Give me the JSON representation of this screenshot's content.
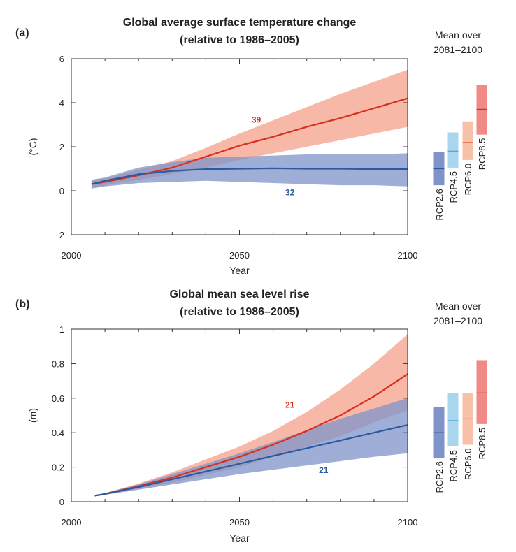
{
  "chart_data": [
    {
      "panel_label": "(a)",
      "type": "area",
      "title_line1": "Global average surface temperature change",
      "title_line2": "(relative to 1986–2005)",
      "xlabel": "Year",
      "ylabel": "(°C)",
      "xlim": [
        2000,
        2100
      ],
      "ylim": [
        -2,
        6
      ],
      "xticks": [
        2000,
        2050,
        2100
      ],
      "xtick_labels": [
        "2000",
        "2050",
        "2100"
      ],
      "yticks": [
        -2,
        0,
        2,
        4,
        6
      ],
      "ytick_labels": [
        "−2",
        "0",
        "2",
        "4",
        "6"
      ],
      "series": [
        {
          "color": "#d7301f",
          "band_color": "#f4a08a",
          "x": [
            2006,
            2010,
            2020,
            2030,
            2040,
            2050,
            2060,
            2070,
            2080,
            2090,
            2100
          ],
          "mean": [
            0.3,
            0.4,
            0.7,
            1.05,
            1.55,
            2.05,
            2.45,
            2.9,
            3.3,
            3.75,
            4.2
          ],
          "lower": [
            0.15,
            0.25,
            0.5,
            0.75,
            1.05,
            1.4,
            1.7,
            2.0,
            2.3,
            2.6,
            2.9
          ],
          "upper": [
            0.5,
            0.55,
            0.95,
            1.35,
            1.95,
            2.6,
            3.2,
            3.8,
            4.4,
            4.95,
            5.5
          ],
          "count_label": "39",
          "count_pos": [
            2055,
            3.1
          ]
        },
        {
          "color": "#2c5aa0",
          "band_color": "#7f93c9",
          "x": [
            2006,
            2010,
            2020,
            2030,
            2040,
            2050,
            2060,
            2070,
            2080,
            2090,
            2100
          ],
          "mean": [
            0.3,
            0.45,
            0.75,
            0.9,
            0.98,
            1.0,
            1.02,
            1.0,
            1.0,
            0.98,
            0.98
          ],
          "lower": [
            0.1,
            0.2,
            0.35,
            0.4,
            0.45,
            0.4,
            0.35,
            0.3,
            0.25,
            0.25,
            0.2
          ],
          "upper": [
            0.5,
            0.6,
            1.05,
            1.3,
            1.5,
            1.55,
            1.6,
            1.65,
            1.65,
            1.65,
            1.7
          ],
          "count_label": "32",
          "count_pos": [
            2065,
            -0.2
          ]
        }
      ],
      "mean_over": {
        "title_line1": "Mean over",
        "title_line2": "2081–2100",
        "bars": [
          {
            "name": "RCP2.6",
            "low": 0.25,
            "mean": 1.0,
            "high": 1.75,
            "fill": "#7f93c9",
            "line": "#2c5aa0"
          },
          {
            "name": "RCP4.5",
            "low": 1.05,
            "mean": 1.8,
            "high": 2.65,
            "fill": "#a9d6ee",
            "line": "#4ba3d6"
          },
          {
            "name": "RCP6.0",
            "low": 1.4,
            "mean": 2.2,
            "high": 3.15,
            "fill": "#f7c0a8",
            "line": "#e5735a"
          },
          {
            "name": "RCP8.5",
            "low": 2.55,
            "mean": 3.7,
            "high": 4.8,
            "fill": "#f08a86",
            "line": "#d7301f"
          }
        ]
      }
    },
    {
      "panel_label": "(b)",
      "type": "area",
      "title_line1": "Global mean sea level rise",
      "title_line2": "(relative to 1986–2005)",
      "xlabel": "Year",
      "ylabel": "(m)",
      "xlim": [
        2000,
        2100
      ],
      "ylim": [
        0,
        1
      ],
      "xticks": [
        2000,
        2050,
        2100
      ],
      "xtick_labels": [
        "2000",
        "2050",
        "2100"
      ],
      "yticks": [
        0,
        0.2,
        0.4,
        0.6,
        0.8,
        1
      ],
      "ytick_labels": [
        "0",
        "0.2",
        "0.4",
        "0.6",
        "0.8",
        "1"
      ],
      "series": [
        {
          "color": "#d7301f",
          "band_color": "#f4a08a",
          "x": [
            2007,
            2010,
            2020,
            2030,
            2040,
            2050,
            2060,
            2070,
            2080,
            2090,
            2100
          ],
          "mean": [
            0.035,
            0.045,
            0.09,
            0.14,
            0.2,
            0.26,
            0.33,
            0.41,
            0.5,
            0.61,
            0.74
          ],
          "lower": [
            0.032,
            0.04,
            0.075,
            0.11,
            0.155,
            0.2,
            0.26,
            0.32,
            0.38,
            0.46,
            0.53
          ],
          "upper": [
            0.038,
            0.05,
            0.105,
            0.17,
            0.245,
            0.32,
            0.41,
            0.52,
            0.65,
            0.8,
            0.97
          ],
          "count_label": "21",
          "count_pos": [
            2065,
            0.545
          ]
        },
        {
          "color": "#2c5aa0",
          "band_color": "#7f93c9",
          "x": [
            2007,
            2010,
            2020,
            2030,
            2040,
            2050,
            2060,
            2070,
            2080,
            2090,
            2100
          ],
          "mean": [
            0.035,
            0.045,
            0.085,
            0.13,
            0.175,
            0.22,
            0.265,
            0.31,
            0.355,
            0.4,
            0.445
          ],
          "lower": [
            0.032,
            0.04,
            0.07,
            0.1,
            0.13,
            0.16,
            0.185,
            0.21,
            0.235,
            0.26,
            0.28
          ],
          "upper": [
            0.038,
            0.05,
            0.1,
            0.16,
            0.22,
            0.28,
            0.345,
            0.415,
            0.48,
            0.54,
            0.6
          ],
          "count_label": "21",
          "count_pos": [
            2075,
            0.165
          ]
        }
      ],
      "mean_over": {
        "title_line1": "Mean over",
        "title_line2": "2081–2100",
        "bars": [
          {
            "name": "RCP2.6",
            "low": 0.255,
            "mean": 0.4,
            "high": 0.55,
            "fill": "#7f93c9",
            "line": "#2c5aa0"
          },
          {
            "name": "RCP4.5",
            "low": 0.32,
            "mean": 0.47,
            "high": 0.63,
            "fill": "#a9d6ee",
            "line": "#4ba3d6"
          },
          {
            "name": "RCP6.0",
            "low": 0.33,
            "mean": 0.48,
            "high": 0.63,
            "fill": "#f7c0a8",
            "line": "#e5735a"
          },
          {
            "name": "RCP8.5",
            "low": 0.45,
            "mean": 0.63,
            "high": 0.82,
            "fill": "#f08a86",
            "line": "#d7301f"
          }
        ]
      }
    }
  ]
}
